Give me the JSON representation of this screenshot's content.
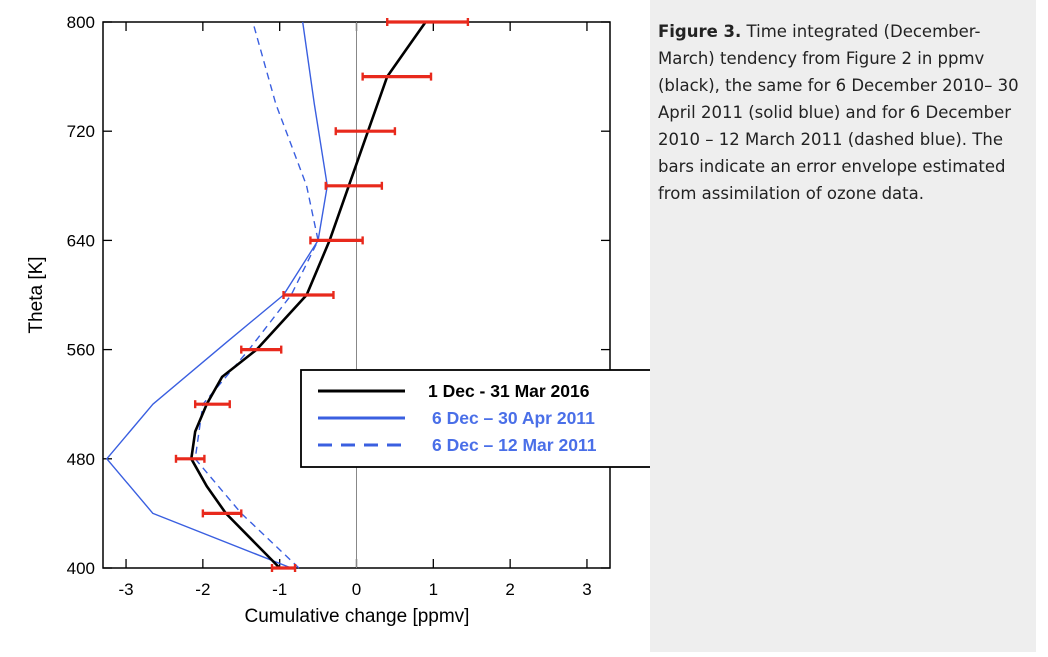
{
  "figure": {
    "caption_label": "Figure 3.",
    "caption_body": " Time integrated (December-March) tendency from Figure 2 in ppmv (black), the same for 6 December 2010– 30 April 2011 (solid blue) and for 6 December 2010 – 12 March 2011 (dashed blue). The bars indicate an error envelope estimated from assimilation of ozone data."
  },
  "chart_data": {
    "type": "line",
    "title": "",
    "xlabel": "Cumulative change [ppmv]",
    "ylabel": "Theta [K]",
    "xlim": [
      -3.3,
      3.3
    ],
    "ylim": [
      400,
      800
    ],
    "xticks": [
      -3,
      -2,
      -1,
      0,
      1,
      2,
      3
    ],
    "yticks": [
      400,
      480,
      560,
      640,
      720,
      800
    ],
    "zero_line": true,
    "legend_position": "lower-right",
    "colors": {
      "black_series": "#000000",
      "blue_series": "#3a5fe0",
      "error_bars": "#e8291c",
      "legend_blue_text": "#4a6fe8"
    },
    "series": [
      {
        "name": "1 Dec - 31 Mar 2016",
        "style": "solid",
        "color": "#000000",
        "x": [
          -1.0,
          -1.35,
          -1.7,
          -1.95,
          -2.15,
          -2.1,
          -1.95,
          -1.75,
          -1.3,
          -0.65,
          -0.35,
          -0.1,
          0.15,
          0.4,
          0.65,
          0.9
        ],
        "y": [
          400,
          420,
          440,
          460,
          480,
          500,
          520,
          540,
          560,
          600,
          640,
          680,
          720,
          760,
          780,
          800
        ]
      },
      {
        "name": "6 Dec – 30 Apr 2011",
        "style": "solid",
        "color": "#3a5fe0",
        "x": [
          -0.85,
          -2.65,
          -3.25,
          -2.65,
          -1.7,
          -0.95,
          -0.5,
          -0.38,
          -0.55,
          -0.7
        ],
        "y": [
          400,
          440,
          480,
          520,
          565,
          600,
          640,
          680,
          740,
          800
        ]
      },
      {
        "name": "6 Dec – 12 Mar 2011",
        "style": "dashed",
        "color": "#3a5fe0",
        "x": [
          -0.75,
          -1.5,
          -2.1,
          -2.0,
          -1.4,
          -0.85,
          -0.5,
          -0.65,
          -1.05,
          -1.35
        ],
        "y": [
          400,
          440,
          480,
          520,
          560,
          600,
          640,
          680,
          740,
          800
        ]
      }
    ],
    "error_bars": [
      {
        "y": 800,
        "xmin": 0.4,
        "xmax": 1.45
      },
      {
        "y": 760,
        "xmin": 0.08,
        "xmax": 0.97
      },
      {
        "y": 720,
        "xmin": -0.27,
        "xmax": 0.5
      },
      {
        "y": 680,
        "xmin": -0.4,
        "xmax": 0.33
      },
      {
        "y": 640,
        "xmin": -0.6,
        "xmax": 0.08
      },
      {
        "y": 600,
        "xmin": -0.95,
        "xmax": -0.3
      },
      {
        "y": 560,
        "xmin": -1.5,
        "xmax": -0.98
      },
      {
        "y": 520,
        "xmin": -2.1,
        "xmax": -1.65
      },
      {
        "y": 480,
        "xmin": -2.35,
        "xmax": -1.98
      },
      {
        "y": 440,
        "xmin": -2.0,
        "xmax": -1.5
      },
      {
        "y": 400,
        "xmin": -1.1,
        "xmax": -0.8
      }
    ]
  }
}
